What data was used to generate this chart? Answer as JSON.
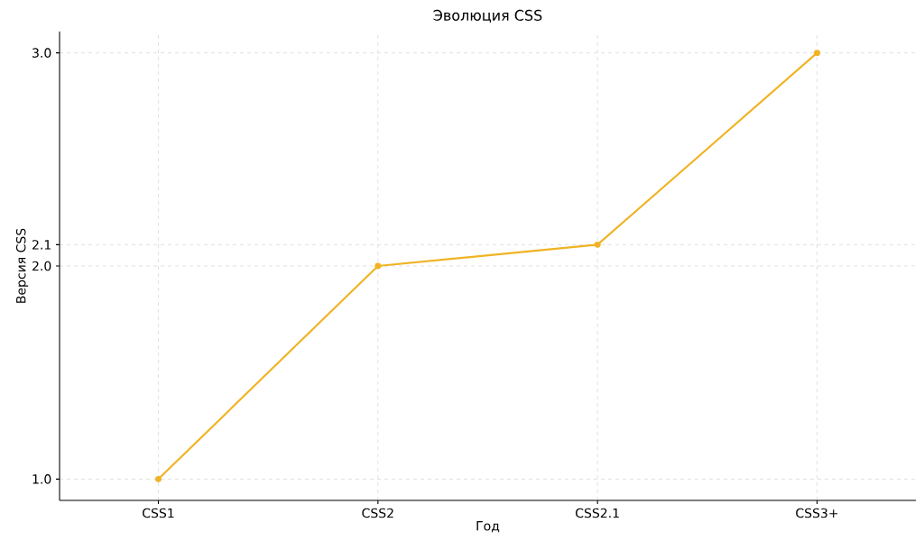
{
  "chart_data": {
    "type": "line",
    "title": "Эволюция CSS",
    "xlabel": "Год",
    "ylabel": "Версия CSS",
    "categories": [
      "CSS1",
      "CSS2",
      "CSS2.1",
      "CSS3+"
    ],
    "series": [
      {
        "color": "#f0b323",
        "values": [
          1.0,
          2.0,
          2.1,
          3.0
        ]
      }
    ],
    "ylim": [
      0.9,
      3.1
    ],
    "yticks": [
      {
        "value": 1.0,
        "label": "1.0"
      },
      {
        "value": 2.0,
        "label": "2.0"
      },
      {
        "value": 2.1,
        "label": "2.1"
      },
      {
        "value": 3.0,
        "label": "3.0"
      }
    ],
    "grid": true,
    "marker": "circle",
    "line_style": "solid"
  }
}
